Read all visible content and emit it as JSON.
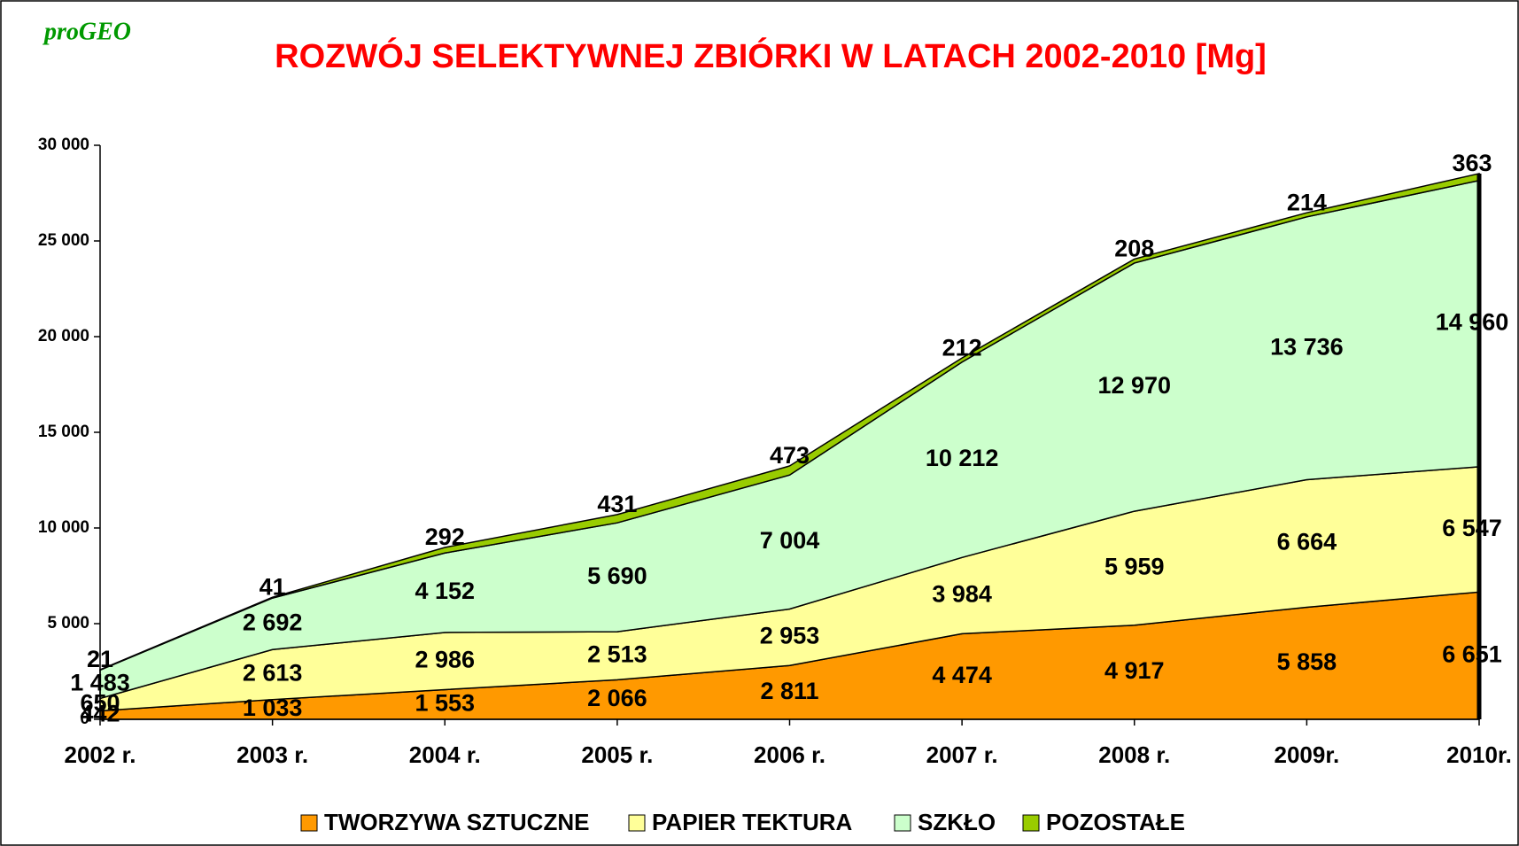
{
  "logo": "proGEO",
  "chart_data": {
    "type": "stacked-area",
    "title": "ROZWÓJ SELEKTYWNEJ ZBIÓRKI W LATACH 2002-2010 [Mg]",
    "categories": [
      "2002 r.",
      "2003 r.",
      "2004 r.",
      "2005 r.",
      "2006 r.",
      "2007 r.",
      "2008 r.",
      "2009r.",
      "2010r."
    ],
    "series": [
      {
        "name": "TWORZYWA SZTUCZNE",
        "color": "#FF9900",
        "values": [
          442,
          1033,
          1553,
          2066,
          2811,
          4474,
          4917,
          5858,
          6651
        ],
        "value_labels": [
          "442",
          "1 033",
          "1 553",
          "2 066",
          "2 811",
          "4 474",
          "4 917",
          "5 858",
          "6 651"
        ]
      },
      {
        "name": "PAPIER TEKTURA",
        "color": "#FFFF99",
        "values": [
          650,
          2613,
          2986,
          2513,
          2953,
          3984,
          5959,
          6664,
          6547
        ],
        "value_labels": [
          "650",
          "2 613",
          "2 986",
          "2 513",
          "2 953",
          "3 984",
          "5 959",
          "6 664",
          "6 547"
        ]
      },
      {
        "name": "SZKŁO",
        "color": "#CCFFCC",
        "values": [
          1483,
          2692,
          4152,
          5690,
          7004,
          10212,
          12970,
          13736,
          14960
        ],
        "value_labels": [
          "1 483",
          "2 692",
          "4 152",
          "5 690",
          "7 004",
          "10 212",
          "12 970",
          "13 736",
          "14 960"
        ]
      },
      {
        "name": "POZOSTAŁE",
        "color": "#99CC00",
        "values": [
          21,
          41,
          292,
          431,
          473,
          212,
          208,
          214,
          363
        ],
        "value_labels": [
          "21",
          "41",
          "292",
          "431",
          "473",
          "212",
          "208",
          "214",
          "363"
        ]
      }
    ],
    "ylim": [
      0,
      30000
    ],
    "yticks": [
      0,
      {
        "value": 5000,
        "label": "5 000"
      },
      {
        "value": 10000,
        "label": "10 000"
      },
      {
        "value": 15000,
        "label": "15 000"
      },
      {
        "value": 20000,
        "label": "20 000"
      },
      {
        "value": 25000,
        "label": "25 000"
      },
      {
        "value": 30000,
        "label": "30 000"
      }
    ]
  }
}
